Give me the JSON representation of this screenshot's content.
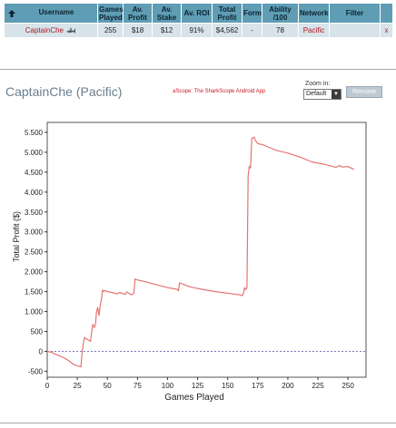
{
  "table": {
    "headers": [
      "Username",
      "Games Played",
      "Av. Profit",
      "Av. Stake",
      "Av. ROI",
      "Total Profit",
      "Form",
      "Ability /100",
      "Network",
      "Filter",
      ""
    ],
    "row": {
      "username": "CaptainChe",
      "games_played": "255",
      "av_profit": "$18",
      "av_stake": "$12",
      "av_roi": "91%",
      "total_profit": "$4,562",
      "form": "-",
      "ability": "78",
      "network": "Pacific",
      "filter": "",
      "remove": "x"
    }
  },
  "header": {
    "player_title": "CaptainChe (Pacific)",
    "app_promo": "aScope: The SharkScope Android App",
    "zoom_label": "Zoom in:",
    "zoom_value": "Default",
    "remove_label": "Remove"
  },
  "colors": {
    "header_bg": "#5f9db4",
    "row_bg": "#d8e3ea",
    "link": "#b0171f",
    "line": "#e57373",
    "zero_line": "#6b63b5"
  },
  "icons": {
    "sort": "up-arrow-icon",
    "player": "shark-icon",
    "zoom": "chevron-down-icon"
  },
  "chart_data": {
    "type": "line",
    "xlabel": "Games Played",
    "ylabel": "Total Profit ($)",
    "xlim": [
      0,
      265
    ],
    "ylim": [
      -650,
      5750
    ],
    "x_ticks": [
      0,
      25,
      50,
      75,
      100,
      125,
      150,
      175,
      200,
      225,
      250
    ],
    "y_ticks": [
      -500,
      0,
      500,
      1000,
      1500,
      2000,
      2500,
      3000,
      3500,
      4000,
      4500,
      5000,
      5500
    ],
    "y_tick_labels": [
      "-500",
      "0",
      "500",
      "1.000",
      "1.500",
      "2.000",
      "2.500",
      "3.000",
      "3.500",
      "4.000",
      "4.500",
      "5.000",
      "5.500"
    ],
    "grid": false,
    "series": [
      {
        "x": [
          0,
          3,
          6,
          10,
          13,
          16,
          19,
          22,
          25,
          27,
          28,
          29,
          30,
          31,
          32,
          36,
          37,
          38,
          39,
          40,
          41,
          42,
          43,
          44,
          45,
          46,
          47,
          48,
          50,
          55,
          58,
          60,
          65,
          66,
          70,
          72,
          73,
          74,
          80,
          90,
          100,
          108,
          109,
          110,
          115,
          120,
          130,
          140,
          150,
          160,
          162,
          163,
          164,
          165,
          166,
          167,
          168,
          169,
          170,
          172,
          173,
          175,
          180,
          190,
          200,
          210,
          220,
          230,
          240,
          243,
          245,
          250,
          255
        ],
        "y": [
          0,
          -20,
          -60,
          -110,
          -150,
          -200,
          -260,
          -330,
          -360,
          -380,
          -390,
          -30,
          200,
          350,
          320,
          250,
          500,
          680,
          600,
          650,
          1000,
          1100,
          900,
          1150,
          1300,
          1540,
          1500,
          1530,
          1500,
          1470,
          1440,
          1480,
          1430,
          1490,
          1420,
          1460,
          1820,
          1800,
          1760,
          1680,
          1600,
          1560,
          1520,
          1720,
          1660,
          1610,
          1550,
          1500,
          1460,
          1420,
          1400,
          1440,
          1600,
          1550,
          1600,
          4400,
          4650,
          4600,
          5350,
          5380,
          5300,
          5220,
          5180,
          5050,
          4980,
          4880,
          4760,
          4700,
          4620,
          4670,
          4630,
          4640,
          4570
        ]
      }
    ]
  }
}
